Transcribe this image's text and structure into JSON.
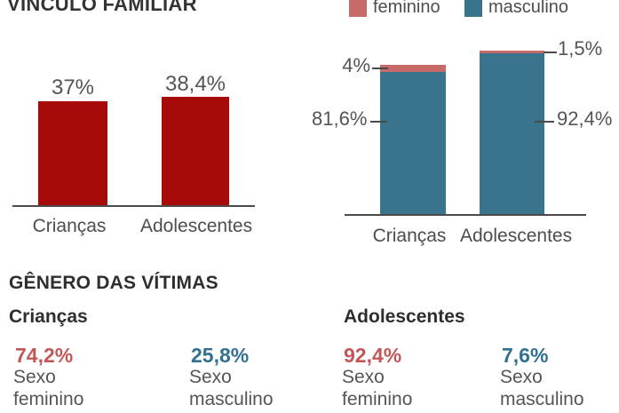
{
  "colors": {
    "dark_red": "#a60b09",
    "pink": "#c96a6a",
    "teal": "#3a738c",
    "salmon_text": "#c0585a",
    "teal_text": "#33708f",
    "heading": "#2e2e2e",
    "gray_text": "#4d4d4d",
    "axis_line": "#4a4a4a"
  },
  "chart_data": [
    {
      "type": "bar",
      "title": "VÍNCULO FAMILIAR",
      "categories": [
        "Crianças",
        "Adolescentes"
      ],
      "values": [
        37,
        38.4
      ],
      "value_labels": [
        "37%",
        "38,4%"
      ],
      "unit": "%",
      "bar_color": "#a60b09",
      "grid": false
    },
    {
      "type": "bar",
      "subtype": "stacked",
      "categories": [
        "Crianças",
        "Adolescentes"
      ],
      "series": [
        {
          "name": "feminino",
          "color": "#c96a6a",
          "values": [
            4,
            1.5
          ],
          "value_labels": [
            "4%",
            "1,5%"
          ]
        },
        {
          "name": "masculino",
          "color": "#3a738c",
          "values": [
            81.6,
            92.4
          ],
          "value_labels": [
            "81,6%",
            "92,4%"
          ]
        }
      ],
      "unit": "%",
      "legend_position": "top",
      "grid": false
    }
  ],
  "gender_section": {
    "title": "GÊNERO DAS VÍTIMAS",
    "groups": [
      {
        "label": "Crianças",
        "stats": [
          {
            "value": "74,2%",
            "label": "Sexo feminino",
            "color": "#c0585a"
          },
          {
            "value": "25,8%",
            "label": "Sexo masculino",
            "color": "#33708f"
          }
        ]
      },
      {
        "label": "Adolescentes",
        "stats": [
          {
            "value": "92,4%",
            "label": "Sexo feminino",
            "color": "#c0585a"
          },
          {
            "value": "7,6%",
            "label": "Sexo masculino",
            "color": "#33708f"
          }
        ]
      }
    ]
  }
}
